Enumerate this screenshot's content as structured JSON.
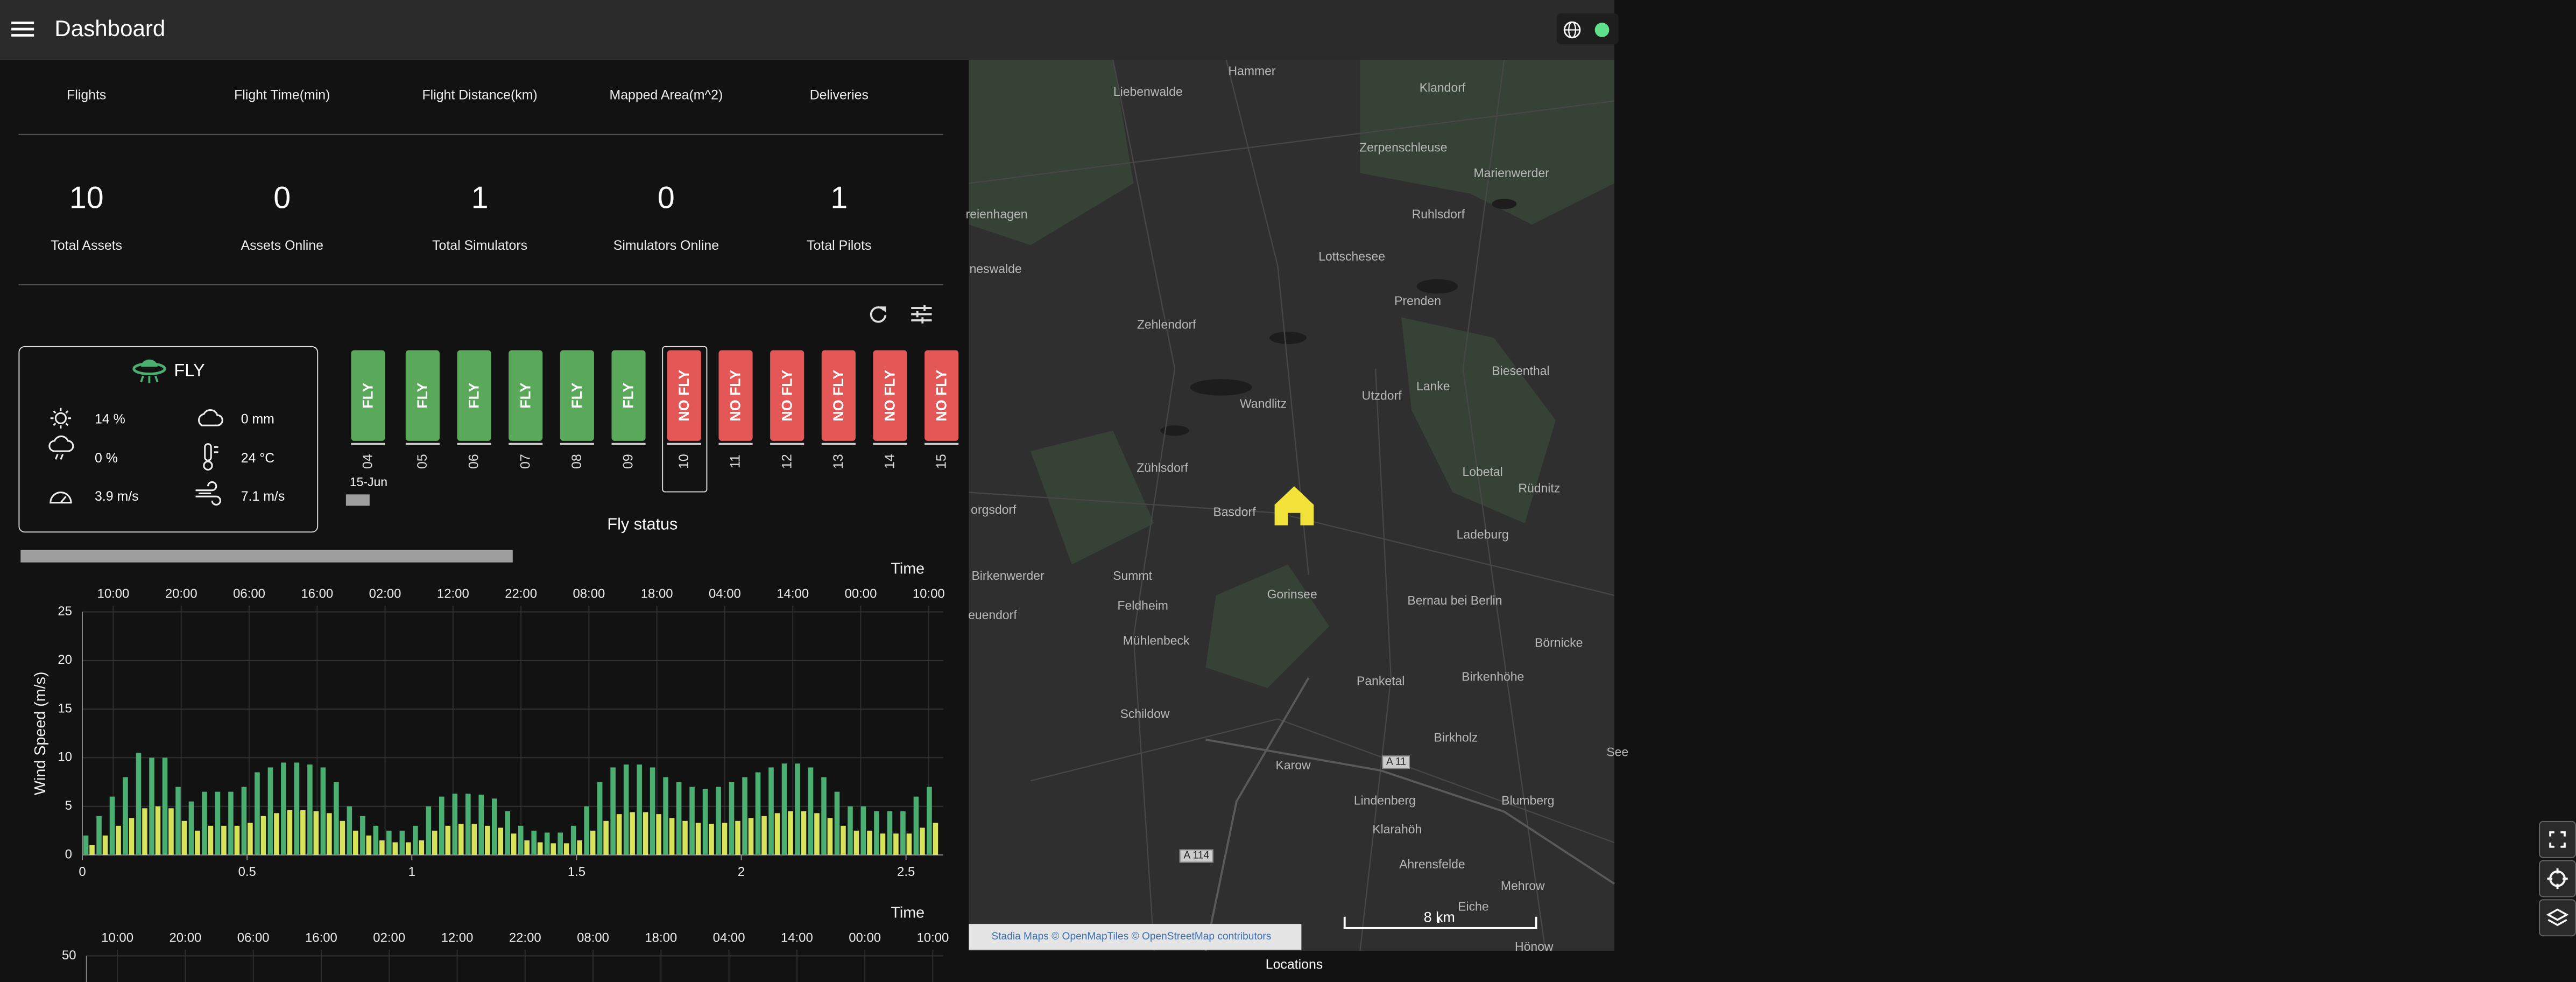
{
  "header": {
    "title": "Dashboard"
  },
  "stats": {
    "headers": [
      "Flights",
      "Flight Time(min)",
      "Flight Distance(km)",
      "Mapped Area(m^2)",
      "Deliveries"
    ],
    "items": [
      {
        "value": 10,
        "label": "Total Assets"
      },
      {
        "value": 0,
        "label": "Assets Online"
      },
      {
        "value": 1,
        "label": "Total Simulators"
      },
      {
        "value": 0,
        "label": "Simulators Online"
      },
      {
        "value": 1,
        "label": "Total Pilots"
      }
    ]
  },
  "weather": {
    "status": "FLY",
    "readings": [
      "14 %",
      "0 mm",
      "0 %",
      "24 °C",
      "3.9 m/s",
      "7.1 m/s"
    ]
  },
  "fly_status": {
    "title": "Fly status",
    "month_label": "15-Jun",
    "days": [
      {
        "day": "04",
        "status": "FLY",
        "color": "#5aa85a"
      },
      {
        "day": "05",
        "status": "FLY",
        "color": "#5aa85a"
      },
      {
        "day": "06",
        "status": "FLY",
        "color": "#5aa85a"
      },
      {
        "day": "07",
        "status": "FLY",
        "color": "#5aa85a"
      },
      {
        "day": "08",
        "status": "FLY",
        "color": "#5aa85a"
      },
      {
        "day": "09",
        "status": "FLY",
        "color": "#5aa85a"
      },
      {
        "day": "10",
        "status": "NO FLY",
        "color": "#e45757",
        "selected": true
      },
      {
        "day": "11",
        "status": "NO FLY",
        "color": "#e45757"
      },
      {
        "day": "12",
        "status": "NO FLY",
        "color": "#e45757"
      },
      {
        "day": "13",
        "status": "NO FLY",
        "color": "#e45757"
      },
      {
        "day": "14",
        "status": "NO FLY",
        "color": "#e45757"
      },
      {
        "day": "15",
        "status": "NO FLY",
        "color": "#e45757"
      }
    ]
  },
  "chart_data": [
    {
      "type": "bar",
      "ylabel": "Wind Speed (m/s)",
      "x2label": "Time",
      "x2ticks": [
        "10:00",
        "20:00",
        "06:00",
        "16:00",
        "02:00",
        "12:00",
        "22:00",
        "08:00",
        "18:00",
        "04:00",
        "14:00",
        "00:00",
        "10:00"
      ],
      "xlim": [
        0,
        2.6
      ],
      "xticks": [
        0,
        0.5,
        1,
        1.5,
        2,
        2.5
      ],
      "ylim": [
        0,
        25
      ],
      "yticks": [
        0,
        5,
        10,
        15,
        20,
        25
      ],
      "grid": true,
      "x": [
        0.02,
        0.06,
        0.1,
        0.14,
        0.18,
        0.22,
        0.26,
        0.3,
        0.34,
        0.38,
        0.42,
        0.46,
        0.5,
        0.54,
        0.58,
        0.62,
        0.66,
        0.7,
        0.74,
        0.78,
        0.82,
        0.86,
        0.9,
        0.94,
        0.98,
        1.02,
        1.06,
        1.1,
        1.14,
        1.18,
        1.22,
        1.26,
        1.3,
        1.34,
        1.38,
        1.42,
        1.46,
        1.5,
        1.54,
        1.58,
        1.62,
        1.66,
        1.7,
        1.74,
        1.78,
        1.82,
        1.86,
        1.9,
        1.94,
        1.98,
        2.02,
        2.06,
        2.1,
        2.14,
        2.18,
        2.22,
        2.26,
        2.3,
        2.34,
        2.38,
        2.42,
        2.46,
        2.5,
        2.54,
        2.58
      ],
      "series": [
        {
          "color": "#4caf72",
          "values": [
            2,
            4,
            6,
            8,
            10.5,
            10,
            10,
            7,
            5.5,
            6.5,
            6.5,
            6.5,
            7,
            8.5,
            9,
            9.5,
            9.5,
            9.3,
            9,
            7.5,
            5,
            4,
            3,
            2.5,
            2.5,
            3,
            5,
            6,
            6.3,
            6.3,
            6.2,
            5.8,
            4.5,
            3,
            2.5,
            2.3,
            2.3,
            3,
            5,
            7.5,
            9,
            9.3,
            9.3,
            9,
            8,
            7.5,
            7,
            6.8,
            7,
            7.5,
            8,
            8.5,
            9,
            9.4,
            9.4,
            9,
            8,
            6.5,
            5,
            5,
            4.5,
            4.5,
            4.5,
            6,
            7
          ]
        },
        {
          "color": "#d7e35a",
          "values": [
            1,
            2,
            3,
            3.8,
            4.8,
            5,
            4.8,
            3.5,
            2.5,
            3,
            3,
            3,
            3.3,
            4,
            4.3,
            4.6,
            4.6,
            4.5,
            4.3,
            3.5,
            2.5,
            2,
            1.5,
            1.3,
            1.3,
            1.5,
            2.5,
            3,
            3.2,
            3.2,
            3,
            2.8,
            2.2,
            1.5,
            1.3,
            1.2,
            1.2,
            1.5,
            2.5,
            3.5,
            4.2,
            4.4,
            4.4,
            4.2,
            3.8,
            3.5,
            3.3,
            3.2,
            3.3,
            3.5,
            3.8,
            4,
            4.3,
            4.5,
            4.5,
            4.3,
            3.8,
            3,
            2.5,
            2.5,
            2.2,
            2.2,
            2.2,
            2.8,
            3.3
          ]
        }
      ]
    },
    {
      "type": "bar",
      "x2label": "Time",
      "x2ticks": [
        "10:00",
        "20:00",
        "06:00",
        "16:00",
        "02:00",
        "12:00",
        "22:00",
        "08:00",
        "18:00",
        "04:00",
        "14:00",
        "00:00",
        "10:00"
      ],
      "ylim": [
        0,
        50
      ],
      "yticks": [
        50
      ],
      "grid": true
    }
  ],
  "map": {
    "places": [
      "Hammer",
      "Liebenwalde",
      "Klandorf",
      "Zerpenschleuse",
      "Marienwerder",
      "Ruhlsdorf",
      "reienhagen",
      "Lottschesee",
      "neswalde",
      "Prenden",
      "Zehlendorf",
      "Biesenthal",
      "Lanke",
      "Utzdorf",
      "Wandlitz",
      "Zühlsdorf",
      "Lobetal",
      "Rüdnitz",
      "Basdorf",
      "orgsdorf",
      "Ladeburg",
      "Birkenwerder",
      "Summt",
      "Gorinsee",
      "Bernau bei Berlin",
      "Feldheim",
      "euendorf",
      "Mühlenbeck",
      "Börnicke",
      "Panketal",
      "Birkenhöhe",
      "Schildow",
      "Birkholz",
      "Karow",
      "Lindenberg",
      "Blumberg",
      "Klarahöh",
      "Ahrensfelde",
      "Mehrow",
      "Eiche",
      "Hönow",
      "See"
    ],
    "roads": [
      "A 11",
      "A 114"
    ],
    "scale": "8 km",
    "attribution": "Stadia Maps © OpenMapTiles © OpenStreetMap contributors",
    "caption": "Locations"
  }
}
